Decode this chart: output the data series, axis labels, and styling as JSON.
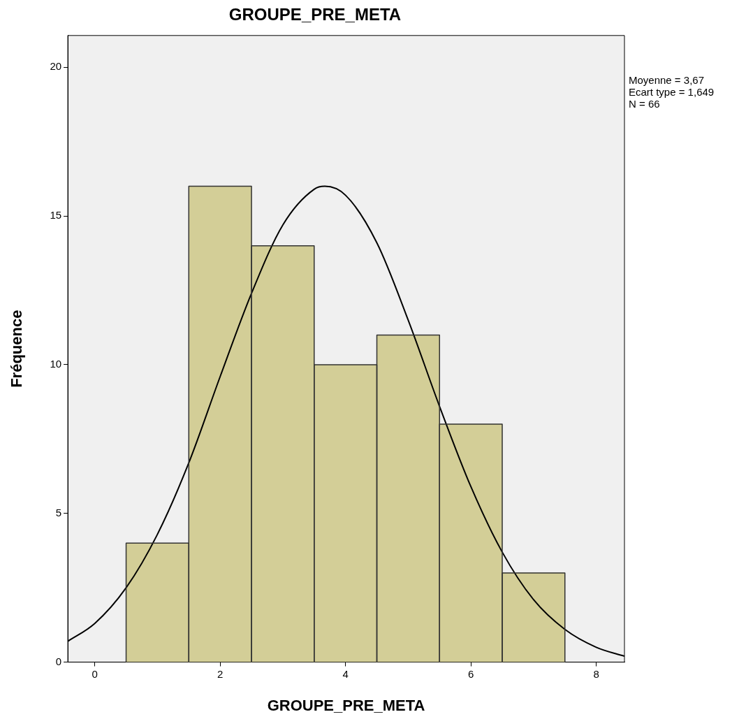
{
  "chart_data": {
    "type": "histogram",
    "title": "GROUPE_PRE_META",
    "xlabel": "GROUPE_PRE_META",
    "ylabel": "Fréquence",
    "bins": [
      0.5,
      1.5,
      2.5,
      3.5,
      4.5,
      5.5,
      6.5,
      7.5
    ],
    "values": [
      4,
      16,
      14,
      10,
      11,
      8,
      3
    ],
    "color": "#d3ce97",
    "series": [
      {
        "type": "line",
        "color": "#000000",
        "x": [
          -0.43,
          0,
          0.5,
          1,
          1.5,
          2,
          2.5,
          3,
          3.5,
          3.67,
          4,
          4.5,
          5,
          5.5,
          6,
          6.5,
          7,
          7.5,
          8,
          8.45
        ],
        "values": [
          0.7,
          1.3,
          2.5,
          4.3,
          6.7,
          9.6,
          12.4,
          14.7,
          15.9,
          16.0,
          15.7,
          14.1,
          11.5,
          8.6,
          5.9,
          3.7,
          2.1,
          1.1,
          0.5,
          0.2
        ]
      }
    ],
    "xlim": [
      -0.43,
      8.45
    ],
    "xticks": [
      0,
      2,
      4,
      6,
      8
    ],
    "ylim": [
      0,
      21.07
    ],
    "yticks": [
      0,
      5,
      10,
      15,
      20
    ],
    "grid": false,
    "legend": false,
    "annotations": [
      "Moyenne = 3,67",
      "Ecart type = 1,649",
      "N = 66"
    ]
  }
}
